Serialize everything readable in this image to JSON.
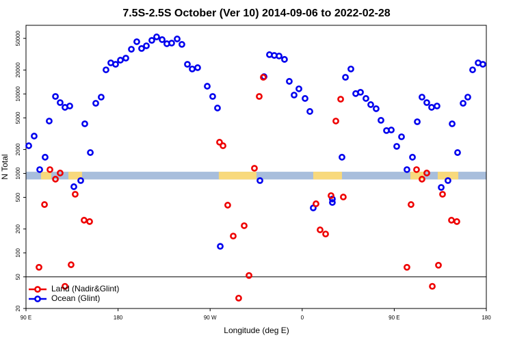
{
  "chart_data": {
    "type": "scatter",
    "title": "7.5S-2.5S October (Ver 10)   2014-09-06 to 2022-02-28",
    "x_label": "Longitude (deg E)",
    "y_label": "N Total",
    "log_y": true,
    "xlim": [
      90,
      540
    ],
    "ylim": [
      20,
      73000
    ],
    "xticks": [
      {
        "value": 90,
        "label": "90 E"
      },
      {
        "value": 180,
        "label": "180"
      },
      {
        "value": 270,
        "label": "90 W"
      },
      {
        "value": 360,
        "label": "0"
      },
      {
        "value": 450,
        "label": "90 E"
      },
      {
        "value": 540,
        "label": "180"
      }
    ],
    "yticks": [
      20,
      50,
      100,
      200,
      500,
      1000,
      2000,
      5000,
      10000,
      20000,
      50000
    ],
    "hline": 50,
    "legend": "lower left",
    "surface_band": {
      "ylim": [
        840,
        1050
      ],
      "ocean_color": "#a8bedc",
      "land_color": "#f8d97c",
      "land_ranges": [
        [
          104.7,
          114.7
        ],
        [
          131.5,
          144.8
        ],
        [
          278.5,
          315.3
        ],
        [
          370.8,
          398.9
        ],
        [
          465.8,
          479.1
        ],
        [
          492.5,
          512.6
        ]
      ]
    },
    "series": [
      {
        "name": "Ocean (Glint)",
        "color": "#0000ee",
        "x": [
          92.7,
          98.0,
          103.4,
          108.7,
          112.7,
          118.8,
          123.4,
          128.1,
          132.8,
          136.8,
          143.5,
          147.5,
          152.9,
          158.2,
          163.5,
          168.2,
          172.9,
          177.6,
          182.3,
          187.6,
          193.0,
          198.3,
          203.0,
          207.7,
          213.0,
          217.7,
          223.1,
          227.7,
          232.4,
          237.8,
          242.4,
          247.8,
          252.5,
          257.8,
          267.2,
          272.5,
          277.2,
          279.9,
          318.7,
          322.7,
          328.0,
          332.7,
          337.4,
          342.7,
          347.4,
          352.1,
          356.8,
          362.8,
          367.5,
          370.8,
          389.5,
          389.5,
          398.9,
          402.3,
          407.6,
          412.3,
          417.0,
          422.3,
          427.0,
          432.3,
          437.0,
          442.4,
          447.1,
          452.4,
          457.1,
          462.4,
          467.8,
          472.5,
          477.1,
          481.8,
          486.5,
          491.8,
          495.9,
          502.5,
          506.6,
          511.9,
          517.3,
          521.9,
          526.6,
          532.0,
          536.6
        ],
        "values": [
          2230,
          2950,
          1117,
          1600,
          4560,
          9300,
          7780,
          6780,
          7050,
          681,
          813,
          4210,
          1830,
          7630,
          9120,
          20100,
          24600,
          23600,
          26600,
          28200,
          36500,
          45400,
          37300,
          40300,
          47200,
          52200,
          48200,
          42800,
          43600,
          49200,
          42000,
          23600,
          20600,
          21400,
          12500,
          9300,
          6650,
          121,
          813,
          16500,
          31200,
          30500,
          30000,
          27200,
          14400,
          9680,
          11600,
          8770,
          6020,
          368,
          476,
          431,
          1600,
          16200,
          20600,
          10100,
          10500,
          8770,
          7340,
          6520,
          4660,
          3460,
          3520,
          2190,
          2890,
          1117,
          1600,
          4470,
          9120,
          7780,
          6780,
          7050,
          667,
          813,
          4210,
          1830,
          7630,
          9120,
          20100,
          24600,
          23600
        ]
      },
      {
        "name": "Land (Nadir&Glint)",
        "color": "#ee0000",
        "x": [
          102.7,
          108.1,
          113.4,
          118.8,
          123.4,
          128.1,
          134.1,
          138.1,
          146.8,
          152.2,
          279.2,
          282.6,
          287.2,
          292.6,
          297.9,
          303.3,
          308.0,
          313.3,
          318.0,
          322.0,
          373.5,
          377.5,
          382.9,
          388.2,
          392.9,
          397.6,
          400.2,
          462.4,
          466.4,
          471.8,
          477.1,
          481.8,
          487.2,
          493.2,
          497.2,
          505.9,
          511.2
        ],
        "values": [
          66,
          406,
          1117,
          847,
          1012,
          38,
          71,
          547,
          258,
          248,
          2470,
          2230,
          399,
          163,
          27,
          220,
          52,
          1161,
          9300,
          16200,
          415,
          195,
          173,
          526,
          4560,
          8590,
          505,
          66,
          406,
          1117,
          847,
          1012,
          38,
          70,
          547,
          258,
          248
        ]
      }
    ]
  }
}
